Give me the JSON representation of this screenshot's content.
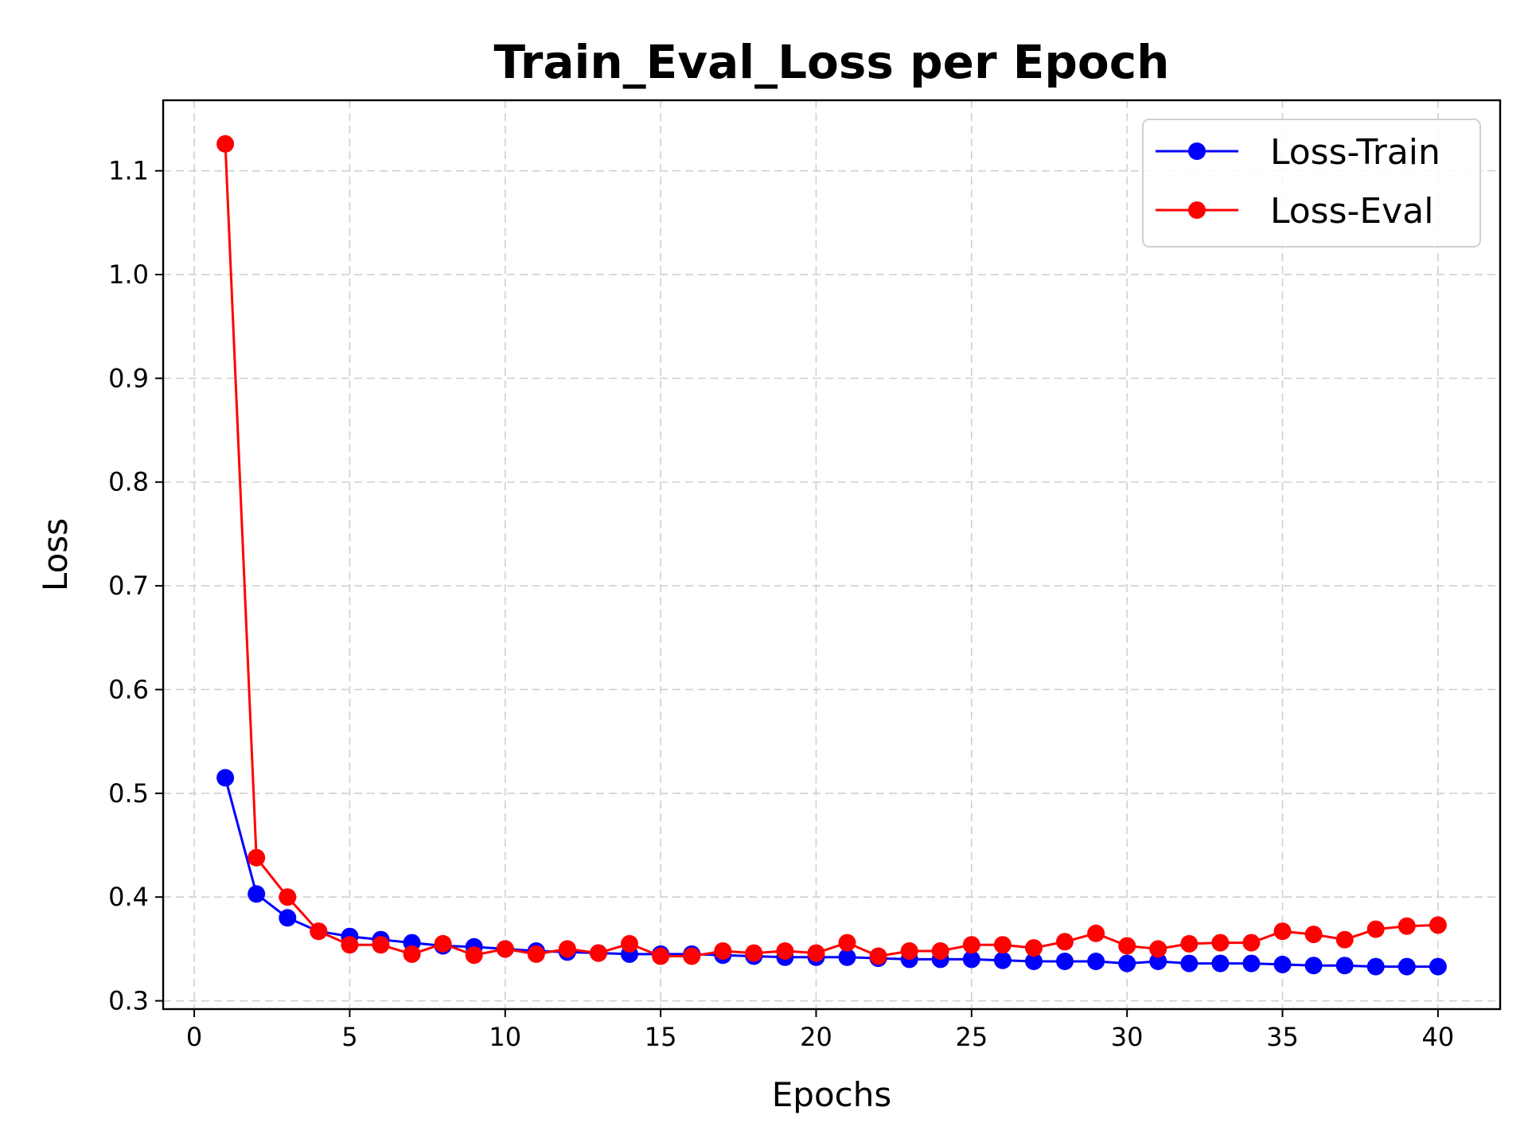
{
  "chart_data": {
    "type": "line",
    "title": "Train_Eval_Loss per Epoch",
    "xlabel": "Epochs",
    "ylabel": "Loss",
    "xlim": [
      -1,
      42
    ],
    "ylim": [
      0.292,
      1.168
    ],
    "xticks": [
      0,
      5,
      10,
      15,
      20,
      25,
      30,
      35,
      40
    ],
    "yticks": [
      0.3,
      0.4,
      0.5,
      0.6,
      0.7,
      0.8,
      0.9,
      1.0,
      1.1
    ],
    "grid": true,
    "legend_position": "top-right",
    "x": [
      1,
      2,
      3,
      4,
      5,
      6,
      7,
      8,
      9,
      10,
      11,
      12,
      13,
      14,
      15,
      16,
      17,
      18,
      19,
      20,
      21,
      22,
      23,
      24,
      25,
      26,
      27,
      28,
      29,
      30,
      31,
      32,
      33,
      34,
      35,
      36,
      37,
      38,
      39,
      40
    ],
    "series": [
      {
        "name": "Loss-Train",
        "color": "#0000ff",
        "values": [
          0.515,
          0.403,
          0.38,
          0.367,
          0.362,
          0.359,
          0.356,
          0.353,
          0.352,
          0.35,
          0.348,
          0.347,
          0.346,
          0.345,
          0.345,
          0.345,
          0.344,
          0.343,
          0.342,
          0.342,
          0.342,
          0.341,
          0.34,
          0.34,
          0.34,
          0.339,
          0.338,
          0.338,
          0.338,
          0.336,
          0.338,
          0.336,
          0.336,
          0.336,
          0.335,
          0.334,
          0.334,
          0.333,
          0.333,
          0.333
        ]
      },
      {
        "name": "Loss-Eval",
        "color": "#ff0000",
        "values": [
          1.126,
          0.438,
          0.4,
          0.367,
          0.354,
          0.354,
          0.345,
          0.355,
          0.344,
          0.35,
          0.345,
          0.35,
          0.346,
          0.355,
          0.343,
          0.343,
          0.348,
          0.346,
          0.348,
          0.346,
          0.356,
          0.343,
          0.348,
          0.348,
          0.354,
          0.354,
          0.351,
          0.357,
          0.365,
          0.353,
          0.35,
          0.355,
          0.356,
          0.356,
          0.367,
          0.364,
          0.359,
          0.369,
          0.372,
          0.373
        ]
      }
    ]
  }
}
